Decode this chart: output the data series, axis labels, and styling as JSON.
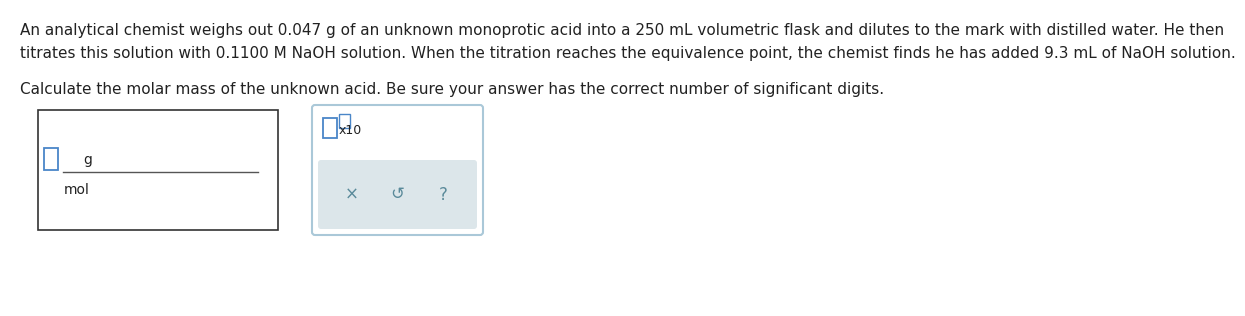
{
  "background_color": "#ffffff",
  "text_line1": "An analytical chemist weighs out 0.047 g of an unknown monoprotic acid into a 250 mL volumetric flask and dilutes to the mark with distilled water. He then",
  "text_line2": "titrates this solution with 0.1100 M NaOH solution. When the titration reaches the equivalence point, the chemist finds he has added 9.3 mL of NaOH solution.",
  "text_line3": "Calculate the molar mass of the unknown acid. Be sure your answer has the correct number of significant digits.",
  "answer_label_g": "g",
  "answer_label_mol": "mol",
  "x10_label": "x10",
  "button_x": "×",
  "button_undo": "↺",
  "button_q": "?",
  "input_box_color": "#4a86c8",
  "box1_border_color": "#333333",
  "box2_border_color": "#aac8d8",
  "button_area_color": "#dce6ea",
  "button_text_color": "#5a8a9a",
  "text_color": "#222222",
  "font_size_body": 11.0,
  "font_size_widget": 10.0,
  "font_size_button": 12.0
}
